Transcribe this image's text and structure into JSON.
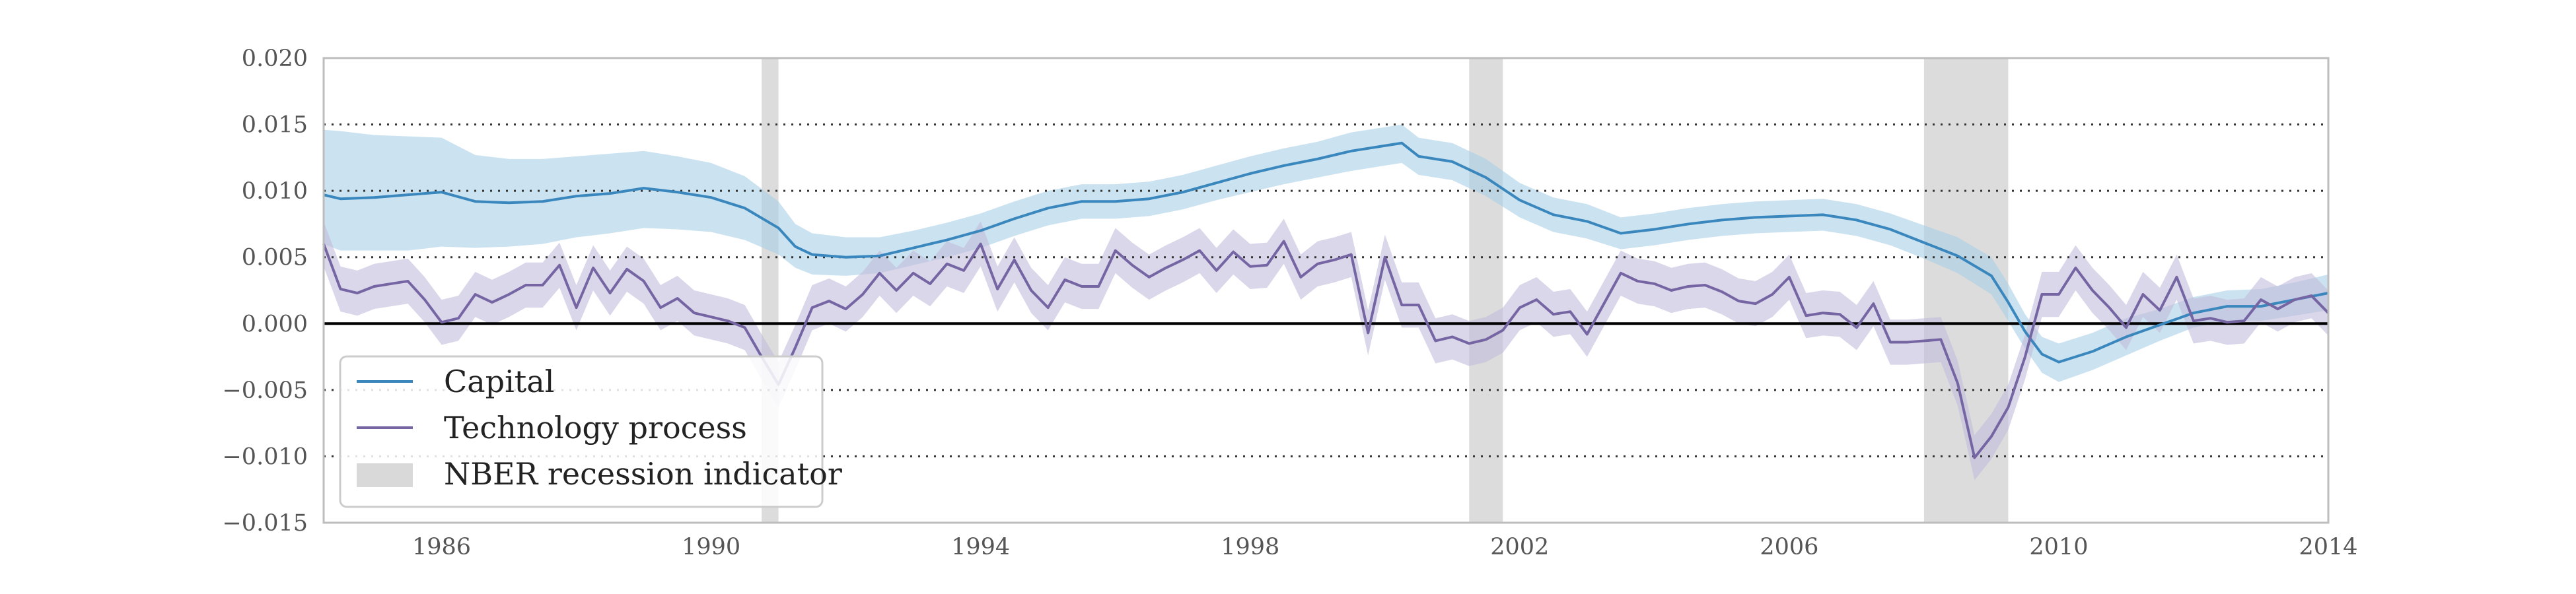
{
  "chart_data": {
    "type": "line",
    "title": "",
    "xlabel": "",
    "ylabel": "",
    "xlim": [
      1984.25,
      2014.0
    ],
    "ylim": [
      -0.015,
      0.02
    ],
    "x_ticks": [
      1986,
      1990,
      1994,
      1998,
      2002,
      2006,
      2010,
      2014
    ],
    "x_tick_labels": [
      "1986",
      "1990",
      "1994",
      "1998",
      "2002",
      "2006",
      "2010",
      "2014"
    ],
    "y_ticks": [
      -0.015,
      -0.01,
      -0.005,
      0.0,
      0.005,
      0.01,
      0.015,
      0.02
    ],
    "y_tick_labels": [
      "−0.015",
      "−0.010",
      "−0.005",
      "0.000",
      "0.005",
      "0.010",
      "0.015",
      "0.020"
    ],
    "grid": "horizontal dotted",
    "zero_line": 0.0,
    "legend_position": "bottom-left",
    "legend": [
      {
        "label": "Capital",
        "kind": "line",
        "color": "#3a87bd"
      },
      {
        "label": "Technology process",
        "kind": "line",
        "color": "#7565a3"
      },
      {
        "label": "NBER recession indicator",
        "kind": "patch",
        "color": "#d9d9d9"
      }
    ],
    "recessions": [
      [
        1990.75,
        1991.0
      ],
      [
        2001.25,
        2001.75
      ],
      [
        2008.0,
        2009.25
      ]
    ],
    "series": [
      {
        "name": "Capital",
        "color": "#3a87bd",
        "band_color": "#a9cfe6",
        "x": [
          1984.25,
          1984.5,
          1985.0,
          1985.5,
          1986.0,
          1986.5,
          1987.0,
          1987.5,
          1988.0,
          1988.5,
          1989.0,
          1989.5,
          1990.0,
          1990.5,
          1991.0,
          1991.25,
          1991.5,
          1992.0,
          1992.5,
          1993.0,
          1993.5,
          1994.0,
          1994.5,
          1995.0,
          1995.5,
          1996.0,
          1996.5,
          1997.0,
          1997.5,
          1998.0,
          1998.5,
          1999.0,
          1999.5,
          2000.0,
          2000.25,
          2000.5,
          2001.0,
          2001.5,
          2002.0,
          2002.5,
          2003.0,
          2003.5,
          2004.0,
          2004.5,
          2005.0,
          2005.5,
          2006.0,
          2006.5,
          2007.0,
          2007.5,
          2008.0,
          2008.5,
          2009.0,
          2009.25,
          2009.5,
          2009.75,
          2010.0,
          2010.5,
          2011.0,
          2011.5,
          2012.0,
          2012.5,
          2013.0,
          2013.5,
          2014.0
        ],
        "y": [
          0.0097,
          0.0094,
          0.0095,
          0.0097,
          0.0099,
          0.0092,
          0.0091,
          0.0092,
          0.0096,
          0.0098,
          0.0102,
          0.0099,
          0.0095,
          0.0087,
          0.0072,
          0.0058,
          0.0052,
          0.005,
          0.0051,
          0.0057,
          0.0063,
          0.007,
          0.0079,
          0.0087,
          0.0092,
          0.0092,
          0.0094,
          0.0099,
          0.0106,
          0.0113,
          0.0119,
          0.0124,
          0.013,
          0.0134,
          0.0136,
          0.0126,
          0.0122,
          0.011,
          0.0093,
          0.0082,
          0.0077,
          0.0068,
          0.0071,
          0.0075,
          0.0078,
          0.008,
          0.0081,
          0.0082,
          0.0078,
          0.0071,
          0.0061,
          0.0051,
          0.0036,
          0.0016,
          -0.0006,
          -0.0023,
          -0.0029,
          -0.0021,
          -0.001,
          -0.0001,
          0.0008,
          0.0013,
          0.0013,
          0.0018,
          0.0023
        ],
        "lower": [
          0.006,
          0.0055,
          0.0055,
          0.0055,
          0.0058,
          0.0057,
          0.0058,
          0.006,
          0.0065,
          0.0068,
          0.0072,
          0.0071,
          0.0069,
          0.0063,
          0.0052,
          0.0042,
          0.0037,
          0.0036,
          0.0038,
          0.0044,
          0.005,
          0.0057,
          0.0066,
          0.0074,
          0.0079,
          0.0079,
          0.0081,
          0.0086,
          0.0093,
          0.0099,
          0.0105,
          0.011,
          0.0115,
          0.0119,
          0.0121,
          0.0112,
          0.0108,
          0.0096,
          0.008,
          0.0069,
          0.0064,
          0.0056,
          0.0059,
          0.0063,
          0.0066,
          0.0068,
          0.0069,
          0.007,
          0.0066,
          0.0059,
          0.0049,
          0.0038,
          0.0022,
          0.0002,
          -0.0019,
          -0.0037,
          -0.0044,
          -0.0035,
          -0.0024,
          -0.0013,
          -0.0003,
          0.0002,
          0.0002,
          0.0006,
          0.001
        ],
        "upper": [
          0.0146,
          0.0145,
          0.0142,
          0.0141,
          0.014,
          0.0127,
          0.0124,
          0.0124,
          0.0126,
          0.0128,
          0.013,
          0.0126,
          0.0121,
          0.0111,
          0.0092,
          0.0075,
          0.0068,
          0.0065,
          0.0065,
          0.007,
          0.0076,
          0.0083,
          0.0092,
          0.01,
          0.0105,
          0.0105,
          0.0107,
          0.0112,
          0.0119,
          0.0126,
          0.0132,
          0.0137,
          0.0144,
          0.0148,
          0.015,
          0.014,
          0.0136,
          0.0124,
          0.0106,
          0.0095,
          0.009,
          0.008,
          0.0083,
          0.0087,
          0.009,
          0.0092,
          0.0093,
          0.0094,
          0.009,
          0.0083,
          0.0074,
          0.0065,
          0.005,
          0.003,
          0.0007,
          -0.001,
          -0.0015,
          -0.0007,
          0.0004,
          0.0011,
          0.002,
          0.0025,
          0.0026,
          0.0031,
          0.0037
        ]
      },
      {
        "name": "Technology process",
        "color": "#7565a3",
        "band_color": "#c3bcdc",
        "x": [
          1984.25,
          1984.5,
          1984.75,
          1985.0,
          1985.25,
          1985.5,
          1985.75,
          1986.0,
          1986.25,
          1986.5,
          1986.75,
          1987.0,
          1987.25,
          1987.5,
          1987.75,
          1988.0,
          1988.25,
          1988.5,
          1988.75,
          1989.0,
          1989.25,
          1989.5,
          1989.75,
          1990.0,
          1990.25,
          1990.5,
          1990.75,
          1991.0,
          1991.25,
          1991.5,
          1991.75,
          1992.0,
          1992.25,
          1992.5,
          1992.75,
          1993.0,
          1993.25,
          1993.5,
          1993.75,
          1994.0,
          1994.25,
          1994.5,
          1994.75,
          1995.0,
          1995.25,
          1995.5,
          1995.75,
          1996.0,
          1996.25,
          1996.5,
          1996.75,
          1997.0,
          1997.25,
          1997.5,
          1997.75,
          1998.0,
          1998.25,
          1998.5,
          1998.75,
          1999.0,
          1999.25,
          1999.5,
          1999.75,
          2000.0,
          2000.25,
          2000.5,
          2000.75,
          2001.0,
          2001.25,
          2001.5,
          2001.75,
          2002.0,
          2002.25,
          2002.5,
          2002.75,
          2003.0,
          2003.25,
          2003.5,
          2003.75,
          2004.0,
          2004.25,
          2004.5,
          2004.75,
          2005.0,
          2005.25,
          2005.5,
          2005.75,
          2006.0,
          2006.25,
          2006.5,
          2006.75,
          2007.0,
          2007.25,
          2007.5,
          2007.75,
          2008.0,
          2008.25,
          2008.5,
          2008.75,
          2009.0,
          2009.25,
          2009.5,
          2009.75,
          2010.0,
          2010.25,
          2010.5,
          2010.75,
          2011.0,
          2011.25,
          2011.5,
          2011.75,
          2012.0,
          2012.25,
          2012.5,
          2012.75,
          2013.0,
          2013.25,
          2013.5,
          2013.75,
          2014.0
        ],
        "y": [
          0.006,
          0.0026,
          0.0023,
          0.0028,
          0.003,
          0.0032,
          0.0018,
          0.0001,
          0.0004,
          0.0022,
          0.0016,
          0.0022,
          0.0029,
          0.0029,
          0.0044,
          0.0012,
          0.0042,
          0.0023,
          0.0041,
          0.0032,
          0.0012,
          0.0019,
          0.0008,
          0.0005,
          0.0002,
          -0.0003,
          -0.0025,
          -0.0046,
          -0.0018,
          0.0012,
          0.0017,
          0.0011,
          0.0022,
          0.0038,
          0.0025,
          0.0038,
          0.003,
          0.0045,
          0.004,
          0.006,
          0.0026,
          0.0048,
          0.0025,
          0.0012,
          0.0033,
          0.0028,
          0.0028,
          0.0055,
          0.0044,
          0.0035,
          0.0042,
          0.0048,
          0.0055,
          0.004,
          0.0054,
          0.0043,
          0.0044,
          0.0062,
          0.0035,
          0.0045,
          0.0048,
          0.0052,
          -0.0007,
          0.005,
          0.0014,
          0.0014,
          -0.0013,
          -0.001,
          -0.0015,
          -0.0012,
          -0.0005,
          0.0012,
          0.0018,
          0.0007,
          0.0009,
          -0.0008,
          0.0015,
          0.0038,
          0.0032,
          0.003,
          0.0025,
          0.0028,
          0.0029,
          0.0024,
          0.0017,
          0.0015,
          0.0022,
          0.0035,
          0.0006,
          0.0008,
          0.0007,
          -0.0003,
          0.0015,
          -0.0014,
          -0.0014,
          -0.0013,
          -0.0012,
          -0.0045,
          -0.0101,
          -0.0085,
          -0.0063,
          -0.0025,
          0.0022,
          0.0022,
          0.0042,
          0.0025,
          0.0012,
          -0.0003,
          0.0022,
          0.001,
          0.0035,
          0.0002,
          0.0004,
          0.0001,
          0.0002,
          0.0018,
          0.0011,
          0.0018,
          0.0021,
          0.0008
        ],
        "lower": [
          0.0043,
          0.0009,
          0.0006,
          0.0011,
          0.0013,
          0.0015,
          0.0001,
          -0.0016,
          -0.0013,
          0.0005,
          -0.0001,
          0.0005,
          0.0012,
          0.0012,
          0.0027,
          -0.0005,
          0.0025,
          0.0006,
          0.0024,
          0.0015,
          -0.0005,
          0.0002,
          -0.0009,
          -0.0012,
          -0.0015,
          -0.002,
          -0.0042,
          -0.0063,
          -0.0035,
          -0.0005,
          0.0,
          -0.0006,
          0.0005,
          0.0021,
          0.0008,
          0.0021,
          0.0013,
          0.0028,
          0.0023,
          0.0043,
          0.0009,
          0.0031,
          0.0008,
          -0.0005,
          0.0016,
          0.0011,
          0.0011,
          0.0038,
          0.0027,
          0.0018,
          0.0025,
          0.0031,
          0.0038,
          0.0023,
          0.0037,
          0.0026,
          0.0027,
          0.0045,
          0.0018,
          0.0028,
          0.0031,
          0.0035,
          -0.0024,
          0.0033,
          -0.0003,
          -0.0003,
          -0.003,
          -0.0027,
          -0.0032,
          -0.0029,
          -0.0022,
          -0.0005,
          0.0001,
          -0.001,
          -0.0008,
          -0.0025,
          -0.0002,
          0.0021,
          0.0015,
          0.0013,
          0.0008,
          0.0011,
          0.0012,
          0.0007,
          0.0,
          -0.0002,
          0.0005,
          0.0018,
          -0.0011,
          -0.0009,
          -0.001,
          -0.002,
          -0.0002,
          -0.0031,
          -0.0031,
          -0.003,
          -0.0029,
          -0.0062,
          -0.0118,
          -0.0102,
          -0.008,
          -0.0042,
          0.0005,
          0.0005,
          0.0025,
          0.0008,
          -0.0005,
          -0.002,
          0.0005,
          -0.0007,
          0.0018,
          -0.0015,
          -0.0013,
          -0.0016,
          -0.0015,
          0.0001,
          -0.0006,
          0.0001,
          0.0004,
          -0.0009
        ],
        "upper": [
          0.0077,
          0.0043,
          0.004,
          0.0045,
          0.0047,
          0.0049,
          0.0035,
          0.0018,
          0.0021,
          0.0039,
          0.0033,
          0.0039,
          0.0046,
          0.0046,
          0.0061,
          0.0029,
          0.0059,
          0.004,
          0.0058,
          0.0049,
          0.0029,
          0.0036,
          0.0025,
          0.0022,
          0.0019,
          0.0014,
          -0.0008,
          -0.0029,
          -0.0001,
          0.0029,
          0.0034,
          0.0028,
          0.0039,
          0.0055,
          0.0042,
          0.0055,
          0.0047,
          0.0062,
          0.0057,
          0.0077,
          0.0043,
          0.0065,
          0.0042,
          0.0029,
          0.005,
          0.0045,
          0.0045,
          0.0072,
          0.0061,
          0.0052,
          0.0059,
          0.0065,
          0.0072,
          0.0057,
          0.0071,
          0.006,
          0.0061,
          0.0079,
          0.0052,
          0.0062,
          0.0065,
          0.0069,
          0.001,
          0.0067,
          0.0031,
          0.0031,
          0.0004,
          0.0007,
          0.0002,
          0.0005,
          0.0012,
          0.0029,
          0.0035,
          0.0024,
          0.0026,
          0.0009,
          0.0032,
          0.0055,
          0.0049,
          0.0047,
          0.0042,
          0.0045,
          0.0046,
          0.0041,
          0.0034,
          0.0032,
          0.0039,
          0.0052,
          0.0023,
          0.0025,
          0.0024,
          0.0014,
          0.0032,
          0.0003,
          0.0003,
          0.0004,
          0.0005,
          -0.0028,
          -0.0084,
          -0.0068,
          -0.0046,
          -0.0008,
          0.0039,
          0.0039,
          0.0059,
          0.0042,
          0.0029,
          0.0014,
          0.0039,
          0.0027,
          0.0052,
          0.0019,
          0.0021,
          0.0018,
          0.0019,
          0.0035,
          0.0028,
          0.0035,
          0.0038,
          0.0025
        ]
      }
    ]
  }
}
